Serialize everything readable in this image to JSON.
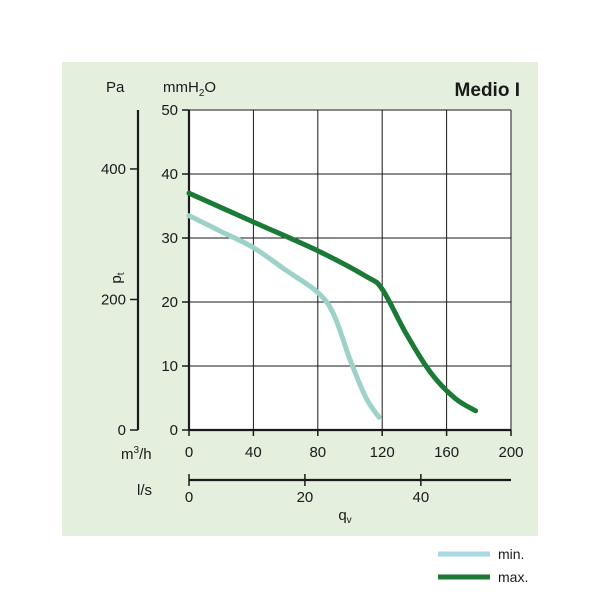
{
  "chart_data": {
    "type": "line",
    "title": "Medio I",
    "ylabel": "p",
    "ylabel_sub": "t",
    "xlabel": "q",
    "xlabel_sub": "v",
    "unit_pa": "Pa",
    "unit_mmh2o_main": "mmH",
    "unit_mmh2o_sub": "2",
    "unit_mmh2o_end": "O",
    "unit_m3h": "m",
    "unit_m3h_sup": "3",
    "unit_m3h_end": "/h",
    "unit_ls": "l/s",
    "pa_ticks": [
      {
        "value": 0,
        "label": "0"
      },
      {
        "value": 200,
        "label": "200"
      },
      {
        "value": 400,
        "label": "400"
      }
    ],
    "mm_ticks": [
      0,
      10,
      20,
      30,
      40,
      50
    ],
    "m3h_ticks": [
      0,
      40,
      80,
      120,
      160,
      200
    ],
    "ls_ticks": [
      0,
      20,
      40
    ],
    "xlim": [
      0,
      200
    ],
    "ylim": [
      0,
      50
    ],
    "grid": true,
    "legend_position": "bottom-right",
    "series": [
      {
        "name": "min.",
        "color": "#9ed2c8",
        "points": [
          [
            0,
            33.5
          ],
          [
            20,
            31
          ],
          [
            40,
            28.5
          ],
          [
            60,
            25
          ],
          [
            80,
            21.5
          ],
          [
            90,
            18
          ],
          [
            100,
            11
          ],
          [
            110,
            5
          ],
          [
            118,
            2
          ]
        ]
      },
      {
        "name": "max.",
        "color": "#1a7a36",
        "points": [
          [
            0,
            37
          ],
          [
            40,
            32.5
          ],
          [
            80,
            28
          ],
          [
            110,
            24
          ],
          [
            120,
            22
          ],
          [
            135,
            15
          ],
          [
            150,
            9
          ],
          [
            165,
            5
          ],
          [
            178,
            3
          ]
        ]
      }
    ],
    "legend": [
      {
        "label": "min.",
        "color": "#a9d8e6"
      },
      {
        "label": "max.",
        "color": "#1a7a36"
      }
    ]
  }
}
